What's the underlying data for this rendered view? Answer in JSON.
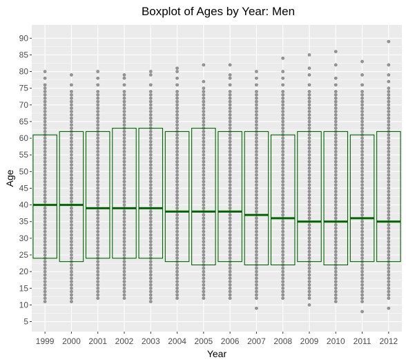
{
  "chart_data": {
    "type": "boxplot",
    "title": "Boxplot of Ages by Year: Men",
    "xlabel": "Year",
    "ylabel": "Age",
    "ylim": [
      2,
      94
    ],
    "yticks": [
      5,
      10,
      15,
      20,
      25,
      30,
      35,
      40,
      45,
      50,
      55,
      60,
      65,
      70,
      75,
      80,
      85,
      90
    ],
    "grid": true,
    "colors": {
      "panel": "#ebebeb",
      "grid_major": "#ffffff",
      "box": "#006400",
      "points": "#000000"
    },
    "categories": [
      "1999",
      "2000",
      "2001",
      "2002",
      "2003",
      "2004",
      "2005",
      "2006",
      "2007",
      "2008",
      "2009",
      "2010",
      "2011",
      "2012"
    ],
    "boxes": [
      {
        "year": "1999",
        "q1": 24,
        "median": 40,
        "q3": 61
      },
      {
        "year": "2000",
        "q1": 23,
        "median": 40,
        "q3": 62
      },
      {
        "year": "2001",
        "q1": 24,
        "median": 39,
        "q3": 62
      },
      {
        "year": "2002",
        "q1": 24,
        "median": 39,
        "q3": 63
      },
      {
        "year": "2003",
        "q1": 24,
        "median": 39,
        "q3": 63
      },
      {
        "year": "2004",
        "q1": 23,
        "median": 38,
        "q3": 62
      },
      {
        "year": "2005",
        "q1": 22,
        "median": 38,
        "q3": 63
      },
      {
        "year": "2006",
        "q1": 23,
        "median": 38,
        "q3": 62
      },
      {
        "year": "2007",
        "q1": 22,
        "median": 37,
        "q3": 62
      },
      {
        "year": "2008",
        "q1": 22,
        "median": 36,
        "q3": 61
      },
      {
        "year": "2009",
        "q1": 23,
        "median": 35,
        "q3": 62
      },
      {
        "year": "2010",
        "q1": 22,
        "median": 35,
        "q3": 62
      },
      {
        "year": "2011",
        "q1": 23,
        "median": 36,
        "q3": 61
      },
      {
        "year": "2012",
        "q1": 23,
        "median": 35,
        "q3": 62
      }
    ],
    "points": [
      {
        "year": "1999",
        "min": 11,
        "max": 74,
        "extra": [
          75,
          76,
          78,
          80
        ]
      },
      {
        "year": "2000",
        "min": 11,
        "max": 73,
        "extra": [
          74,
          76,
          79
        ]
      },
      {
        "year": "2001",
        "min": 12,
        "max": 74,
        "extra": [
          76,
          78,
          80
        ]
      },
      {
        "year": "2002",
        "min": 12,
        "max": 74,
        "extra": [
          76,
          78,
          79
        ]
      },
      {
        "year": "2003",
        "min": 11,
        "max": 74,
        "extra": [
          76,
          79,
          80
        ]
      },
      {
        "year": "2004",
        "min": 12,
        "max": 74,
        "extra": [
          76,
          78,
          80,
          81
        ]
      },
      {
        "year": "2005",
        "min": 12,
        "max": 74,
        "extra": [
          75,
          77,
          82
        ]
      },
      {
        "year": "2006",
        "min": 12,
        "max": 74,
        "extra": [
          76,
          78,
          79,
          82
        ]
      },
      {
        "year": "2007",
        "min": 12,
        "max": 74,
        "extra": [
          9,
          76,
          78,
          80
        ]
      },
      {
        "year": "2008",
        "min": 12,
        "max": 74,
        "extra": [
          76,
          78,
          80,
          84
        ]
      },
      {
        "year": "2009",
        "min": 12,
        "max": 74,
        "extra": [
          10,
          76,
          79,
          81,
          85
        ]
      },
      {
        "year": "2010",
        "min": 11,
        "max": 74,
        "extra": [
          76,
          78,
          82,
          86
        ]
      },
      {
        "year": "2011",
        "min": 11,
        "max": 74,
        "extra": [
          8,
          76,
          79,
          83
        ]
      },
      {
        "year": "2012",
        "min": 12,
        "max": 75,
        "extra": [
          9,
          77,
          79,
          82,
          89
        ]
      }
    ]
  }
}
